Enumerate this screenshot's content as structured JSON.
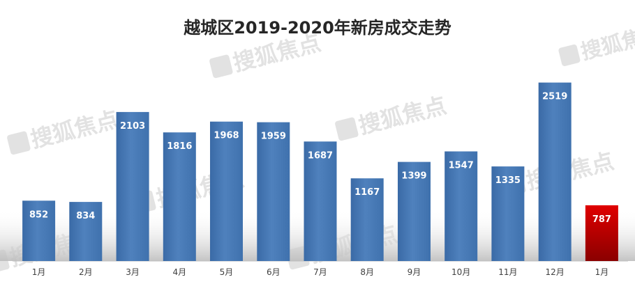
{
  "chart_data": {
    "type": "bar",
    "title": "越城区2019-2020年新房成交走势",
    "categories": [
      "1月",
      "2月",
      "3月",
      "4月",
      "5月",
      "6月",
      "7月",
      "8月",
      "9月",
      "10月",
      "11月",
      "12月",
      "1月"
    ],
    "values": [
      852,
      834,
      2103,
      1816,
      1968,
      1959,
      1687,
      1167,
      1399,
      1547,
      1335,
      2519,
      787
    ],
    "highlight_index": 12,
    "ylim": [
      0,
      2800
    ],
    "grid": false,
    "legend": "none",
    "colors": {
      "bar": "#4f81bd",
      "bar_dark": "#3a6aa6",
      "highlight": "#c00000",
      "highlight_light": "#e00000",
      "label_text": "#ffffff",
      "title_text": "#262626",
      "tick_text": "#404040"
    }
  },
  "watermark": {
    "text": "搜狐焦点",
    "icon": "house-icon"
  }
}
